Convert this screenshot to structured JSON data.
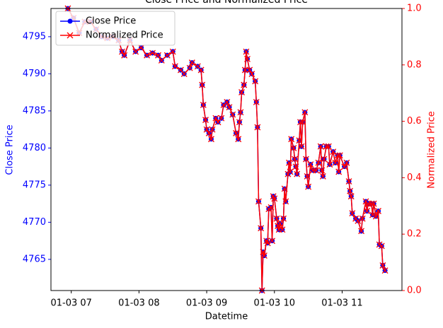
{
  "chart_data": {
    "type": "line",
    "title": "Close Price and Normalized Price",
    "x_label": "Datetime",
    "y_label": "Close Price",
    "y2_label": "Normalized Price",
    "xlim": [
      -18,
      293
    ],
    "xticks": [
      {
        "value": 0,
        "label": "01-03 07"
      },
      {
        "value": 60,
        "label": "01-03 08"
      },
      {
        "value": 120,
        "label": "01-03 09"
      },
      {
        "value": 180,
        "label": "01-03 10"
      },
      {
        "value": 240,
        "label": "01-03 11"
      }
    ],
    "ylim": [
      4760.8,
      4798.8
    ],
    "yticks": [
      4765,
      4770,
      4775,
      4780,
      4785,
      4790,
      4795
    ],
    "y2lim": [
      0,
      1
    ],
    "y2ticks": [
      {
        "value": 0,
        "label": "0.0"
      },
      0.2,
      0.4,
      0.6,
      0.8,
      {
        "value": 1,
        "label": "1.0"
      }
    ],
    "legend": "upper left",
    "x": [
      -3,
      2,
      7,
      12,
      17,
      22,
      27,
      32,
      37,
      42,
      45,
      47,
      52,
      57,
      62,
      67,
      72,
      77,
      80,
      85,
      90,
      92,
      97,
      100,
      105,
      107,
      112,
      115,
      116,
      117,
      119,
      120,
      122,
      124,
      125,
      128,
      130,
      133,
      135,
      138,
      140,
      143,
      146,
      148,
      149,
      150,
      151,
      153,
      154,
      155,
      156,
      158,
      160,
      163,
      164,
      165,
      166,
      168,
      169,
      170,
      171,
      173,
      174,
      175,
      177,
      178,
      179,
      180,
      182,
      183,
      184,
      185,
      187,
      188,
      189,
      190,
      192,
      193,
      194,
      195,
      197,
      198,
      199,
      200,
      202,
      203,
      204,
      205,
      207,
      208,
      209,
      210,
      212,
      214,
      217,
      219,
      221,
      222,
      223,
      224,
      226,
      228,
      229,
      232,
      234,
      236,
      237,
      238,
      242,
      244,
      246,
      247,
      248,
      249,
      252,
      254,
      257,
      258,
      261,
      262,
      263,
      266,
      267,
      268,
      270,
      272,
      273,
      275,
      276,
      278
    ],
    "series": [
      {
        "name": "Close Price",
        "color": "#0000ff",
        "marker": "o",
        "values": [
          4798.8,
          4797.5,
          4795.5,
          4797,
          4797,
          4796,
          4795,
          4794.8,
          4795,
          4794.5,
          4793,
          4792.5,
          4794.5,
          4793,
          4793.5,
          4792.5,
          4792.8,
          4792.5,
          4791.8,
          4792.5,
          4793,
          4791,
          4790.5,
          4790,
          4790.8,
          4791.5,
          4791,
          4790.5,
          4788.5,
          4785.8,
          4783.8,
          4782.5,
          4782,
          4781.2,
          4782.5,
          4784,
          4783.5,
          4784,
          4785.8,
          4786.2,
          4785.5,
          4784.5,
          4782,
          4781.2,
          4783.5,
          4784.8,
          4787.5,
          4788.5,
          4790.5,
          4793,
          4792,
          4790.5,
          4790,
          4789,
          4786.2,
          4782.8,
          4772.8,
          4769.2,
          4760.8,
          4766,
          4765.5,
          4767.5,
          4767.2,
          4771.8,
          4772,
          4767.5,
          4773.5,
          4773.2,
          4770.5,
          4769.5,
          4769,
          4769.8,
          4769,
          4770.5,
          4774.5,
          4772.8,
          4776.5,
          4778,
          4776.8,
          4781.2,
          4780,
          4778.5,
          4777.5,
          4776.5,
          4781,
          4783.5,
          4780.2,
          4783.5,
          4784.8,
          4778.5,
          4776.2,
          4774.8,
          4777.8,
          4777,
          4777,
          4778,
          4780.2,
          4777,
          4776.2,
          4778.5,
          4780.2,
          4780.2,
          4777.8,
          4779.5,
          4778,
          4779,
          4776.8,
          4779,
          4777.5,
          4778,
          4775.5,
          4774.2,
          4773.5,
          4771.2,
          4770.5,
          4770.2,
          4768.8,
          4770.5,
          4772.8,
          4771.5,
          4772.5,
          4772.5,
          4771,
          4772.5,
          4770.8,
          4771.5,
          4767,
          4766.8,
          4764.2,
          4763.5
        ]
      },
      {
        "name": "Normalized Price",
        "color": "#ff0000",
        "marker": "x",
        "axis": "y2",
        "values": [
          1,
          0.966,
          0.913,
          0.953,
          0.953,
          0.926,
          0.9,
          0.895,
          0.9,
          0.887,
          0.847,
          0.834,
          0.887,
          0.847,
          0.861,
          0.834,
          0.842,
          0.834,
          0.816,
          0.834,
          0.847,
          0.795,
          0.782,
          0.768,
          0.789,
          0.808,
          0.795,
          0.782,
          0.729,
          0.658,
          0.605,
          0.571,
          0.558,
          0.537,
          0.571,
          0.611,
          0.597,
          0.611,
          0.658,
          0.668,
          0.65,
          0.624,
          0.558,
          0.537,
          0.597,
          0.632,
          0.703,
          0.729,
          0.782,
          0.847,
          0.821,
          0.782,
          0.768,
          0.742,
          0.668,
          0.579,
          0.316,
          0.221,
          0,
          0.137,
          0.124,
          0.176,
          0.168,
          0.289,
          0.295,
          0.176,
          0.334,
          0.326,
          0.255,
          0.229,
          0.216,
          0.237,
          0.216,
          0.255,
          0.361,
          0.316,
          0.413,
          0.453,
          0.421,
          0.537,
          0.505,
          0.466,
          0.439,
          0.413,
          0.532,
          0.597,
          0.511,
          0.597,
          0.632,
          0.466,
          0.405,
          0.368,
          0.447,
          0.426,
          0.426,
          0.453,
          0.511,
          0.426,
          0.405,
          0.466,
          0.511,
          0.511,
          0.447,
          0.492,
          0.453,
          0.479,
          0.421,
          0.479,
          0.439,
          0.453,
          0.387,
          0.353,
          0.334,
          0.274,
          0.255,
          0.247,
          0.211,
          0.255,
          0.316,
          0.282,
          0.308,
          0.308,
          0.268,
          0.308,
          0.263,
          0.282,
          0.163,
          0.158,
          0.089,
          0.071
        ]
      }
    ]
  }
}
